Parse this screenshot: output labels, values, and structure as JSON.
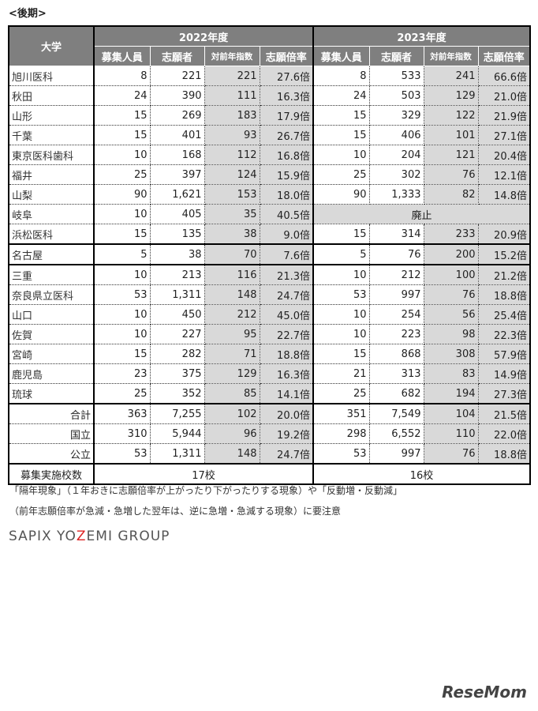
{
  "section_title": "<後期>",
  "headers": {
    "university": "大学",
    "year1": "2022年度",
    "year2": "2023年度",
    "cols": [
      "募集人員",
      "志願者",
      "対前年指数",
      "志願倍率"
    ]
  },
  "rows": [
    {
      "name": "旭川医科",
      "y1": [
        "8",
        "221",
        "221",
        "27.6倍"
      ],
      "y2": [
        "8",
        "533",
        "241",
        "66.6倍"
      ]
    },
    {
      "name": "秋田",
      "y1": [
        "24",
        "390",
        "111",
        "16.3倍"
      ],
      "y2": [
        "24",
        "503",
        "129",
        "21.0倍"
      ]
    },
    {
      "name": "山形",
      "y1": [
        "15",
        "269",
        "183",
        "17.9倍"
      ],
      "y2": [
        "15",
        "329",
        "122",
        "21.9倍"
      ]
    },
    {
      "name": "千葉",
      "y1": [
        "15",
        "401",
        "93",
        "26.7倍"
      ],
      "y2": [
        "15",
        "406",
        "101",
        "27.1倍"
      ]
    },
    {
      "name": "東京医科歯科",
      "y1": [
        "10",
        "168",
        "112",
        "16.8倍"
      ],
      "y2": [
        "10",
        "204",
        "121",
        "20.4倍"
      ]
    },
    {
      "name": "福井",
      "y1": [
        "25",
        "397",
        "124",
        "15.9倍"
      ],
      "y2": [
        "25",
        "302",
        "76",
        "12.1倍"
      ]
    },
    {
      "name": "山梨",
      "y1": [
        "90",
        "1,621",
        "153",
        "18.0倍"
      ],
      "y2": [
        "90",
        "1,333",
        "82",
        "14.8倍"
      ]
    },
    {
      "name": "岐阜",
      "y1": [
        "10",
        "405",
        "35",
        "40.5倍"
      ],
      "y2_text": "廃止"
    },
    {
      "name": "浜松医科",
      "y1": [
        "15",
        "135",
        "38",
        "9.0倍"
      ],
      "y2": [
        "15",
        "314",
        "233",
        "20.9倍"
      ]
    },
    {
      "name": "名古屋",
      "y1": [
        "5",
        "38",
        "70",
        "7.6倍"
      ],
      "y2": [
        "5",
        "76",
        "200",
        "15.2倍"
      ]
    },
    {
      "name": "三重",
      "y1": [
        "10",
        "213",
        "116",
        "21.3倍"
      ],
      "y2": [
        "10",
        "212",
        "100",
        "21.2倍"
      ]
    },
    {
      "name": "奈良県立医科",
      "y1": [
        "53",
        "1,311",
        "148",
        "24.7倍"
      ],
      "y2": [
        "53",
        "997",
        "76",
        "18.8倍"
      ]
    },
    {
      "name": "山口",
      "y1": [
        "10",
        "450",
        "212",
        "45.0倍"
      ],
      "y2": [
        "10",
        "254",
        "56",
        "25.4倍"
      ]
    },
    {
      "name": "佐賀",
      "y1": [
        "10",
        "227",
        "95",
        "22.7倍"
      ],
      "y2": [
        "10",
        "223",
        "98",
        "22.3倍"
      ]
    },
    {
      "name": "宮崎",
      "y1": [
        "15",
        "282",
        "71",
        "18.8倍"
      ],
      "y2": [
        "15",
        "868",
        "308",
        "57.9倍"
      ]
    },
    {
      "name": "鹿児島",
      "y1": [
        "23",
        "375",
        "129",
        "16.3倍"
      ],
      "y2": [
        "21",
        "313",
        "83",
        "14.9倍"
      ]
    },
    {
      "name": "琉球",
      "y1": [
        "25",
        "352",
        "85",
        "14.1倍"
      ],
      "y2": [
        "25",
        "682",
        "194",
        "27.3倍"
      ]
    }
  ],
  "totals": [
    {
      "name": "合計",
      "y1": [
        "363",
        "7,255",
        "102",
        "20.0倍"
      ],
      "y2": [
        "351",
        "7,549",
        "104",
        "21.5倍"
      ]
    },
    {
      "name": "国立",
      "y1": [
        "310",
        "5,944",
        "96",
        "19.2倍"
      ],
      "y2": [
        "298",
        "6,552",
        "110",
        "22.0倍"
      ]
    },
    {
      "name": "公立",
      "y1": [
        "53",
        "1,311",
        "148",
        "24.7倍"
      ],
      "y2": [
        "53",
        "997",
        "76",
        "18.8倍"
      ]
    }
  ],
  "schools": {
    "label": "募集実施校数",
    "y1": "17校",
    "y2": "16校"
  },
  "notes": [
    "「隔年現象」（１年おきに志願倍率が上がったり下がったりする現象）や「反動増・反動減」",
    "（前年志願倍率が急減・急増した翌年は、逆に急増・急減する現象）に要注意"
  ],
  "logo": {
    "pre": "SAPIX YO",
    "z": "Z",
    "post": "EMI GROUP"
  },
  "watermark": "ReseMom",
  "colors": {
    "header_bg": "#7f7f7f",
    "shaded": "#d9d9d9",
    "logo_accent": "#dd2222"
  }
}
